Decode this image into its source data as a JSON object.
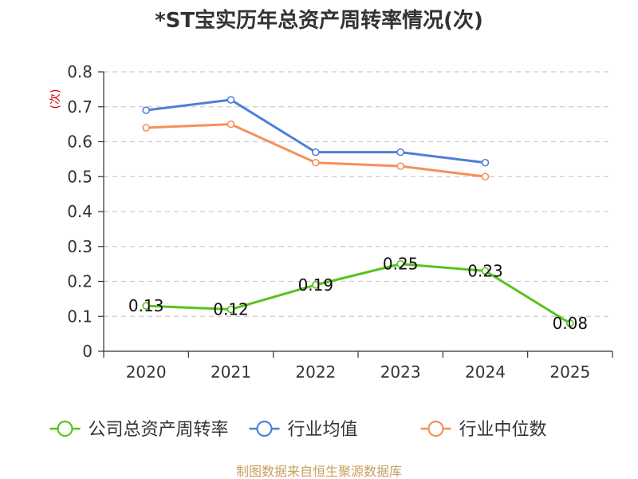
{
  "chart_data": {
    "type": "line",
    "title": "*ST宝实历年总资产周转率情况(次)",
    "ylabel": "(次)",
    "xlabel": "",
    "categories": [
      "2020",
      "2021",
      "2022",
      "2023",
      "2024",
      "2025"
    ],
    "ylim": [
      0,
      0.8
    ],
    "yticks": [
      "0",
      "0.1",
      "0.2",
      "0.3",
      "0.4",
      "0.5",
      "0.6",
      "0.7",
      "0.8"
    ],
    "ytick_values": [
      0,
      0.1,
      0.2,
      0.3,
      0.4,
      0.5,
      0.6,
      0.7,
      0.8
    ],
    "grid": true,
    "legend_position": "bottom",
    "series": [
      {
        "name": "公司总资产周转率",
        "color": "#5ac21f",
        "values": [
          0.13,
          0.12,
          0.19,
          0.25,
          0.23,
          0.08
        ],
        "labels": [
          "0.13",
          "0.12",
          "0.19",
          "0.25",
          "0.23",
          "0.08"
        ],
        "show_labels": true
      },
      {
        "name": "行业均值",
        "color": "#4f7fd8",
        "values": [
          0.69,
          0.72,
          0.57,
          0.57,
          0.54,
          null
        ],
        "show_labels": false
      },
      {
        "name": "行业中位数",
        "color": "#f5905a",
        "values": [
          0.64,
          0.65,
          0.54,
          0.53,
          0.5,
          null
        ],
        "show_labels": false
      }
    ]
  },
  "footer": {
    "source": "制图数据来自恒生聚源数据库"
  }
}
